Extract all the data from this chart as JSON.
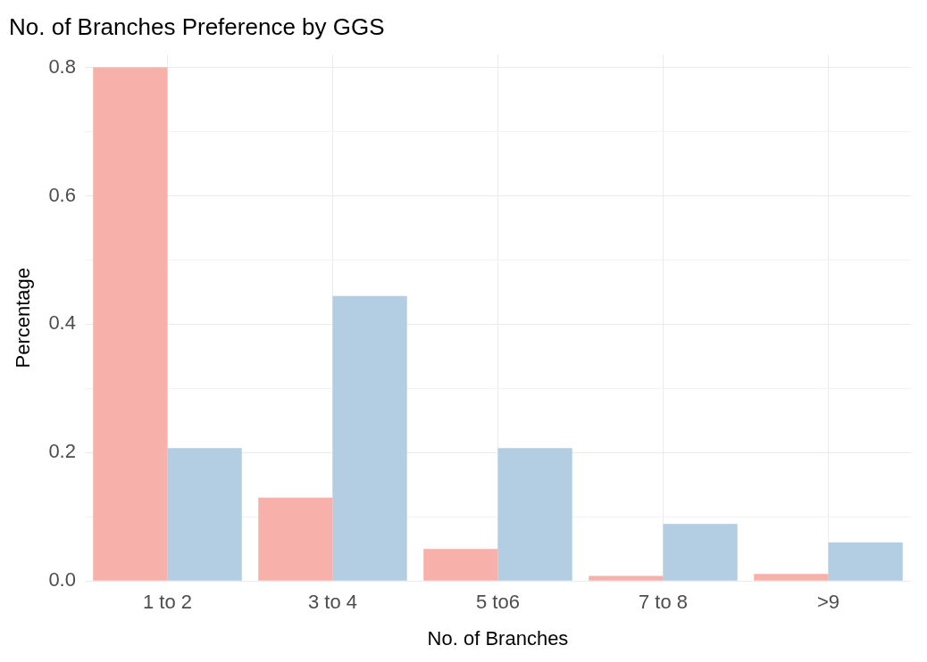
{
  "chart_data": {
    "type": "bar",
    "title": "No. of Branches Preference by GGS",
    "xlabel": "No. of Branches",
    "ylabel": "Percentage",
    "categories": [
      "1 to 2",
      "3 to 4",
      "5 to6",
      "7 to 8",
      ">9"
    ],
    "series": [
      {
        "color": "#f8b0aa",
        "values": [
          0.8,
          0.13,
          0.05,
          0.008,
          0.011
        ]
      },
      {
        "color": "#b3cde3",
        "values": [
          0.207,
          0.444,
          0.207,
          0.089,
          0.06
        ]
      }
    ],
    "ylim": [
      0,
      0.82
    ],
    "yticks": [
      {
        "value": 0,
        "label": "0.0"
      },
      {
        "value": 0.1,
        "label": null
      },
      {
        "value": 0.2,
        "label": "0.2"
      },
      {
        "value": 0.3,
        "label": null
      },
      {
        "value": 0.4,
        "label": "0.4"
      },
      {
        "value": 0.5,
        "label": null
      },
      {
        "value": 0.6,
        "label": "0.6"
      },
      {
        "value": 0.7,
        "label": null
      },
      {
        "value": 0.8,
        "label": "0.8"
      }
    ],
    "grid": true,
    "legend": false
  }
}
